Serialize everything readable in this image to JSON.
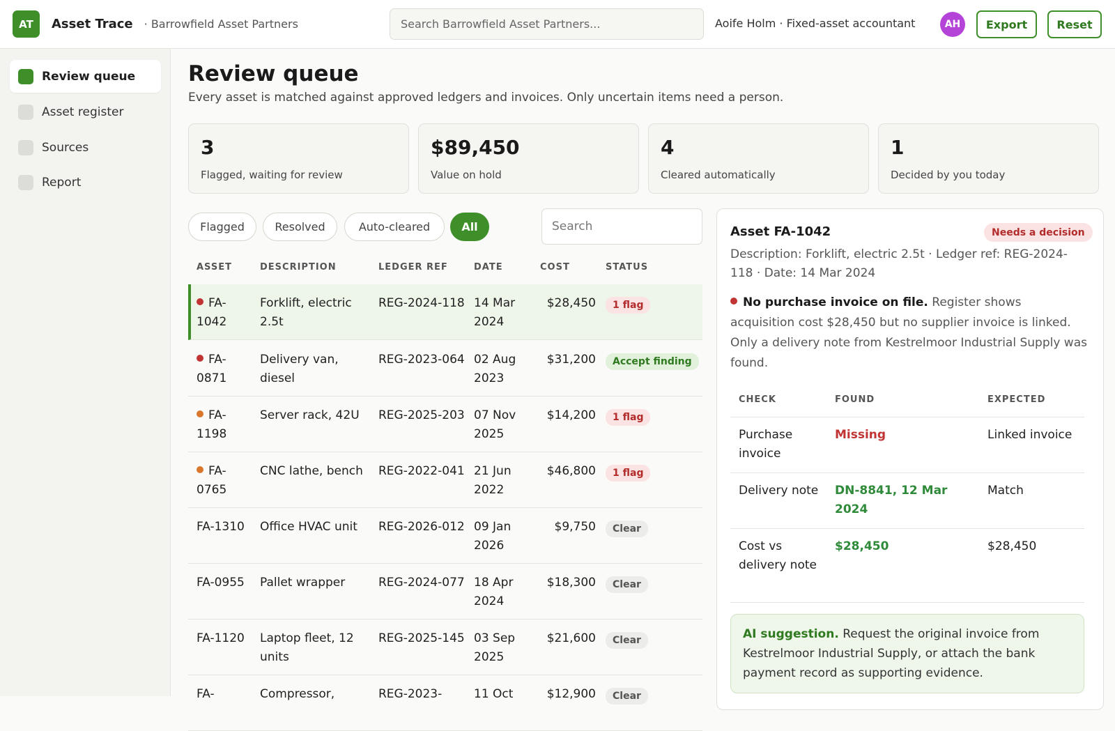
{
  "header": {
    "logo_text": "AT",
    "app_name": "Asset Trace",
    "org_name": "· Barrowfield Asset Partners",
    "search_placeholder": "Search Barrowfield Asset Partners...",
    "user": "Aoife Holm · Fixed-asset accountant",
    "avatar_initials": "AH",
    "export_label": "Export",
    "reset_label": "Reset"
  },
  "sidebar": {
    "items": [
      {
        "label": "Review queue",
        "active": true
      },
      {
        "label": "Asset register",
        "active": false
      },
      {
        "label": "Sources",
        "active": false
      },
      {
        "label": "Report",
        "active": false
      }
    ]
  },
  "main": {
    "title": "Review queue",
    "subtitle": "Every asset is matched against approved ledgers and invoices. Only uncertain items need a person.",
    "stats": [
      {
        "value": "3",
        "label": "Flagged, waiting for review"
      },
      {
        "value": "$89,450",
        "label": "Value on hold"
      },
      {
        "value": "4",
        "label": "Cleared automatically"
      },
      {
        "value": "1",
        "label": "Decided by you today"
      }
    ],
    "filters": [
      {
        "label": "Flagged",
        "active": false
      },
      {
        "label": "Resolved",
        "active": false
      },
      {
        "label": "Auto-cleared",
        "active": false
      },
      {
        "label": "All",
        "active": true
      }
    ],
    "search_placeholder": "Search",
    "columns": [
      "ASSET",
      "DESCRIPTION",
      "LEDGER REF",
      "DATE",
      "COST",
      "STATUS"
    ],
    "rows": [
      {
        "asset": "FA-1042",
        "dot": "red",
        "description": "Forklift, electric 2.5t",
        "ref": "REG-2024-118",
        "date": "14 Mar 2024",
        "cost": "$28,450",
        "status": "1 flag",
        "status_type": "flag",
        "selected": true
      },
      {
        "asset": "FA-0871",
        "dot": "red",
        "description": "Delivery van, diesel",
        "ref": "REG-2023-064",
        "date": "02 Aug 2023",
        "cost": "$31,200",
        "status": "Accept finding",
        "status_type": "accept"
      },
      {
        "asset": "FA-1198",
        "dot": "orange",
        "description": "Server rack, 42U",
        "ref": "REG-2025-203",
        "date": "07 Nov 2025",
        "cost": "$14,200",
        "status": "1 flag",
        "status_type": "flag"
      },
      {
        "asset": "FA-0765",
        "dot": "orange",
        "description": "CNC lathe, bench",
        "ref": "REG-2022-041",
        "date": "21 Jun 2022",
        "cost": "$46,800",
        "status": "1 flag",
        "status_type": "flag"
      },
      {
        "asset": "FA-1310",
        "dot": "",
        "description": "Office HVAC unit",
        "ref": "REG-2026-012",
        "date": "09 Jan 2026",
        "cost": "$9,750",
        "status": "Clear",
        "status_type": "clear"
      },
      {
        "asset": "FA-0955",
        "dot": "",
        "description": "Pallet wrapper",
        "ref": "REG-2024-077",
        "date": "18 Apr 2024",
        "cost": "$18,300",
        "status": "Clear",
        "status_type": "clear"
      },
      {
        "asset": "FA-1120",
        "dot": "",
        "description": "Laptop fleet, 12 units",
        "ref": "REG-2025-145",
        "date": "03 Sep 2025",
        "cost": "$21,600",
        "status": "Clear",
        "status_type": "clear"
      },
      {
        "asset": "FA-",
        "dot": "",
        "description": "Compressor,",
        "ref": "REG-2023-",
        "date": "11 Oct",
        "cost": "$12,900",
        "status": "Clear",
        "status_type": "clear"
      }
    ]
  },
  "detail": {
    "title": "Asset FA-1042",
    "badge": "Needs a decision",
    "meta": "Description: Forklift, electric 2.5t · Ledger ref: REG-2024-118 · Date: 14 Mar 2024",
    "finding_title": "No purchase invoice on file.",
    "finding_text": "Register shows acquisition cost $28,450 but no supplier invoice is linked. Only a delivery note from Kestrelmoor Industrial Supply was found.",
    "check_columns": [
      "CHECK",
      "FOUND",
      "EXPECTED"
    ],
    "checks": [
      {
        "check": "Purchase invoice",
        "found": "Missing",
        "found_type": "missing",
        "expected": "Linked invoice"
      },
      {
        "check": "Delivery note",
        "found": "DN-8841, 12 Mar 2024",
        "found_type": "found",
        "expected": "Match"
      },
      {
        "check": "Cost vs delivery note",
        "found": "$28,450",
        "found_type": "found",
        "expected": "$28,450"
      }
    ],
    "ai_label": "AI suggestion.",
    "ai_text": "Request the original invoice from Kestrelmoor Industrial Supply, or attach the bank payment record as supporting evidence."
  },
  "colors": {
    "accent": "#3e8f2a",
    "flag_red": "#c23434",
    "flag_orange": "#d9772b",
    "avatar": "#b444d8"
  }
}
